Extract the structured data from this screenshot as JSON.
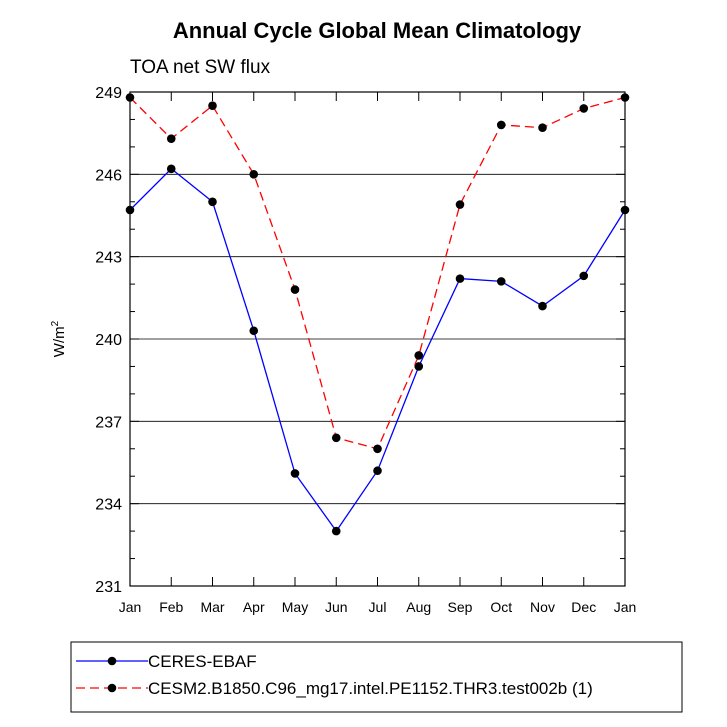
{
  "chart_data": {
    "type": "line",
    "title": "Annual Cycle Global Mean Climatology",
    "subtitle": "TOA net SW flux",
    "ylabel": "W/m",
    "ylabel_sup": "2",
    "ylim": [
      231,
      249
    ],
    "yticks": [
      "231",
      "234",
      "237",
      "240",
      "243",
      "246",
      "249"
    ],
    "categories": [
      "Jan",
      "Feb",
      "Mar",
      "Apr",
      "May",
      "Jun",
      "Jul",
      "Aug",
      "Sep",
      "Oct",
      "Nov",
      "Dec",
      "Jan"
    ],
    "series": [
      {
        "name": "CERES-EBAF",
        "color": "#0000ff",
        "dash": "solid",
        "values": [
          244.7,
          246.2,
          245.0,
          240.3,
          235.1,
          233.0,
          235.2,
          239.0,
          242.2,
          242.1,
          241.2,
          242.3,
          244.7
        ]
      },
      {
        "name": "CESM2.B1850.C96_mg17.intel.PE1152.THR3.test002b (1)",
        "color": "#ff0000",
        "dash": "dashed",
        "values": [
          248.8,
          247.3,
          248.5,
          246.0,
          241.8,
          236.4,
          236.0,
          239.4,
          244.9,
          247.8,
          247.7,
          248.4,
          248.8
        ]
      }
    ]
  }
}
